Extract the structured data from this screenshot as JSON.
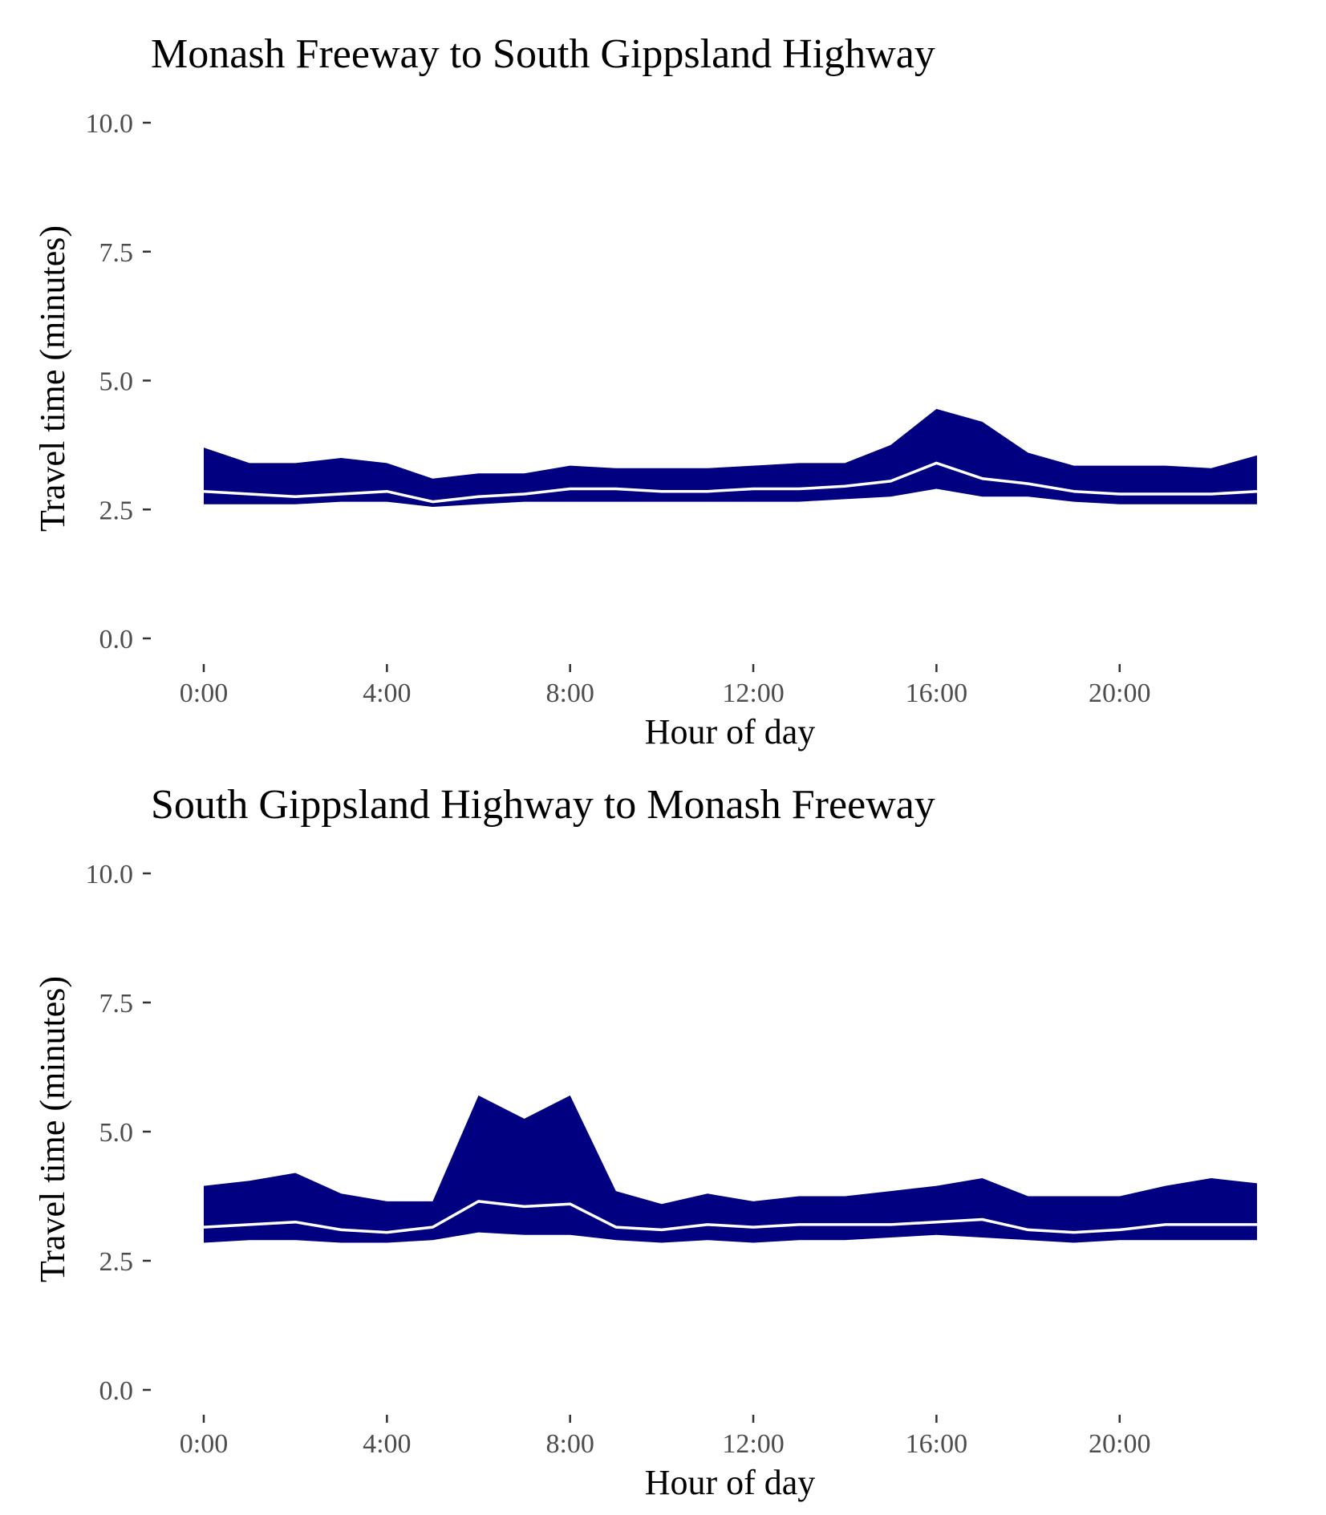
{
  "chart_data": [
    {
      "type": "area",
      "title": "Monash Freeway to South Gippsland Highway",
      "xlabel": "Hour of day",
      "ylabel": "Travel time (minutes)",
      "ylim": [
        0,
        10
      ],
      "yticks": [
        "0.0",
        "2.5",
        "5.0",
        "7.5",
        "10.0"
      ],
      "xticks": [
        "0:00",
        "4:00",
        "8:00",
        "12:00",
        "16:00",
        "20:00"
      ],
      "x": [
        0,
        1,
        2,
        3,
        4,
        5,
        6,
        7,
        8,
        9,
        10,
        11,
        12,
        13,
        14,
        15,
        16,
        17,
        18,
        19,
        20,
        21,
        22,
        23
      ],
      "series": [
        {
          "role": "band-upper",
          "values": [
            3.7,
            3.4,
            3.4,
            3.5,
            3.4,
            3.1,
            3.2,
            3.2,
            3.35,
            3.3,
            3.3,
            3.3,
            3.35,
            3.4,
            3.4,
            3.75,
            4.45,
            4.2,
            3.6,
            3.35,
            3.35,
            3.35,
            3.3,
            3.55
          ]
        },
        {
          "role": "median",
          "values": [
            2.85,
            2.8,
            2.75,
            2.8,
            2.85,
            2.65,
            2.75,
            2.8,
            2.9,
            2.9,
            2.85,
            2.85,
            2.9,
            2.9,
            2.95,
            3.05,
            3.4,
            3.1,
            3.0,
            2.85,
            2.8,
            2.8,
            2.8,
            2.85
          ]
        },
        {
          "role": "band-lower",
          "values": [
            2.6,
            2.6,
            2.6,
            2.65,
            2.65,
            2.55,
            2.6,
            2.65,
            2.65,
            2.65,
            2.65,
            2.65,
            2.65,
            2.65,
            2.7,
            2.75,
            2.9,
            2.75,
            2.75,
            2.65,
            2.6,
            2.6,
            2.6,
            2.6
          ]
        }
      ],
      "colors": {
        "band": "#000080",
        "median": "#ffffff"
      }
    },
    {
      "type": "area",
      "title": "South Gippsland Highway to Monash Freeway",
      "xlabel": "Hour of day",
      "ylabel": "Travel time (minutes)",
      "ylim": [
        0,
        10
      ],
      "yticks": [
        "0.0",
        "2.5",
        "5.0",
        "7.5",
        "10.0"
      ],
      "xticks": [
        "0:00",
        "4:00",
        "8:00",
        "12:00",
        "16:00",
        "20:00"
      ],
      "x": [
        0,
        1,
        2,
        3,
        4,
        5,
        6,
        7,
        8,
        9,
        10,
        11,
        12,
        13,
        14,
        15,
        16,
        17,
        18,
        19,
        20,
        21,
        22,
        23
      ],
      "series": [
        {
          "role": "band-upper",
          "values": [
            3.95,
            4.05,
            4.2,
            3.8,
            3.65,
            3.65,
            5.7,
            5.25,
            5.7,
            3.85,
            3.6,
            3.8,
            3.65,
            3.75,
            3.75,
            3.85,
            3.95,
            4.1,
            3.75,
            3.75,
            3.75,
            3.95,
            4.1,
            4.0
          ]
        },
        {
          "role": "median",
          "values": [
            3.15,
            3.2,
            3.25,
            3.1,
            3.05,
            3.15,
            3.65,
            3.55,
            3.6,
            3.15,
            3.1,
            3.2,
            3.15,
            3.2,
            3.2,
            3.2,
            3.25,
            3.3,
            3.1,
            3.05,
            3.1,
            3.2,
            3.2,
            3.2
          ]
        },
        {
          "role": "band-lower",
          "values": [
            2.85,
            2.9,
            2.9,
            2.85,
            2.85,
            2.9,
            3.05,
            3.0,
            3.0,
            2.9,
            2.85,
            2.9,
            2.85,
            2.9,
            2.9,
            2.95,
            3.0,
            2.95,
            2.9,
            2.85,
            2.9,
            2.9,
            2.9,
            2.9
          ]
        }
      ],
      "colors": {
        "band": "#000080",
        "median": "#ffffff"
      }
    }
  ]
}
